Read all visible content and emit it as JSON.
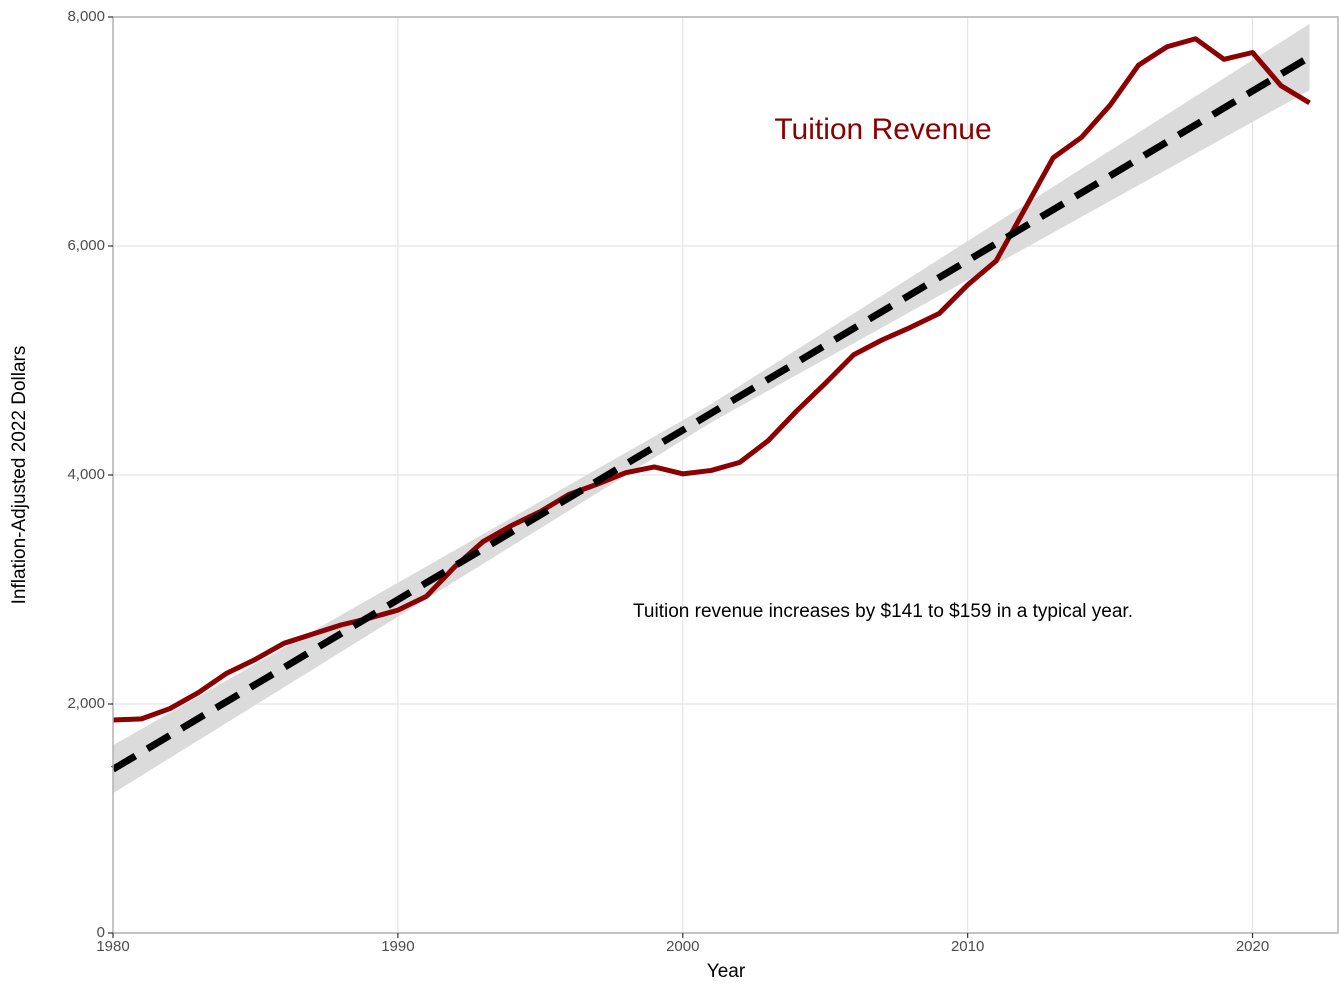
{
  "chart_data": {
    "type": "line",
    "x_label": "Year",
    "y_label": "Inflation-Adjusted 2022 Dollars",
    "x": [
      1980,
      1981,
      1982,
      1983,
      1984,
      1985,
      1986,
      1987,
      1988,
      1989,
      1990,
      1991,
      1992,
      1993,
      1994,
      1995,
      1996,
      1997,
      1998,
      1999,
      2000,
      2001,
      2002,
      2003,
      2004,
      2005,
      2006,
      2007,
      2008,
      2009,
      2010,
      2011,
      2012,
      2013,
      2014,
      2015,
      2016,
      2017,
      2018,
      2019,
      2020,
      2021,
      2022
    ],
    "series": [
      {
        "name": "Tuition Revenue",
        "color": "#8b0000",
        "values": [
          1860,
          1870,
          1960,
          2100,
          2270,
          2390,
          2530,
          2610,
          2690,
          2750,
          2820,
          2940,
          3200,
          3420,
          3560,
          3680,
          3830,
          3920,
          4020,
          4070,
          4010,
          4040,
          4110,
          4300,
          4560,
          4800,
          5050,
          5180,
          5290,
          5410,
          5660,
          5870,
          6320,
          6770,
          6950,
          7230,
          7580,
          7740,
          7810,
          7630,
          7690,
          7400,
          7250
        ]
      },
      {
        "color": "#000000",
        "dashed": true,
        "x": [
          1980,
          2022
        ],
        "values": [
          1430,
          7650
        ]
      }
    ],
    "band": {
      "color": "#d9d9d9",
      "x": [
        1980,
        2001,
        2022
      ],
      "lower": [
        1220,
        4460,
        7360
      ],
      "upper": [
        1640,
        4620,
        7940
      ]
    },
    "annotations": [
      "Tuition revenue increases by $141 to $159 in a typical year."
    ],
    "xlim": [
      1980,
      2023
    ],
    "ylim": [
      0,
      8000
    ],
    "xticks": [
      1980,
      1990,
      2000,
      2010,
      2020
    ],
    "yticks": [
      0,
      {
        "value": 2000,
        "label": "2,000"
      },
      {
        "value": 4000,
        "label": "4,000"
      },
      {
        "value": 6000,
        "label": "6,000"
      },
      {
        "value": 8000,
        "label": "8,000"
      }
    ],
    "grid": true
  }
}
